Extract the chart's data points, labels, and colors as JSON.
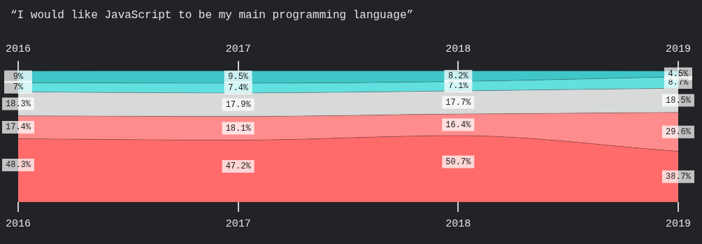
{
  "chart_data": {
    "type": "area",
    "title": "“I would like JavaScript to be my main programming language”",
    "x": [
      2016,
      2017,
      2018,
      2019
    ],
    "xlim": [
      2016,
      2019
    ],
    "xticks": [
      2016,
      2017,
      2018,
      2019
    ],
    "x2lim": [
      2016,
      2019
    ],
    "x2ticks": [
      2016,
      2017,
      2018,
      2019
    ],
    "stacked": true,
    "tick_labels": "x",
    "grid": false,
    "legend": false,
    "series": [
      {
        "color": "#ff6b6b",
        "values": [
          48.3,
          47.2,
          50.7,
          38.7
        ],
        "value_labels": [
          "48.3%",
          "47.2%",
          "50.7%",
          "38.7%"
        ]
      },
      {
        "color": "#ff8c8c",
        "values": [
          17.4,
          18.1,
          16.4,
          29.6
        ],
        "value_labels": [
          "17.4%",
          "18.1%",
          "16.4%",
          "29.6%"
        ]
      },
      {
        "color": "#d8d9d9",
        "values": [
          18.3,
          17.9,
          17.7,
          18.5
        ],
        "value_labels": [
          "18.3%",
          "17.9%",
          "17.7%",
          "18.5%"
        ]
      },
      {
        "color": "#62e0e0",
        "values": [
          7,
          7.4,
          7.1,
          8.7
        ],
        "value_labels": [
          "7%",
          "7.4%",
          "7.1%",
          "8.7%"
        ]
      },
      {
        "color": "#40c6c8",
        "values": [
          9,
          9.5,
          8.2,
          4.5
        ],
        "value_labels": [
          "9%",
          "9.5%",
          "8.2%",
          "4.5%"
        ]
      }
    ]
  }
}
